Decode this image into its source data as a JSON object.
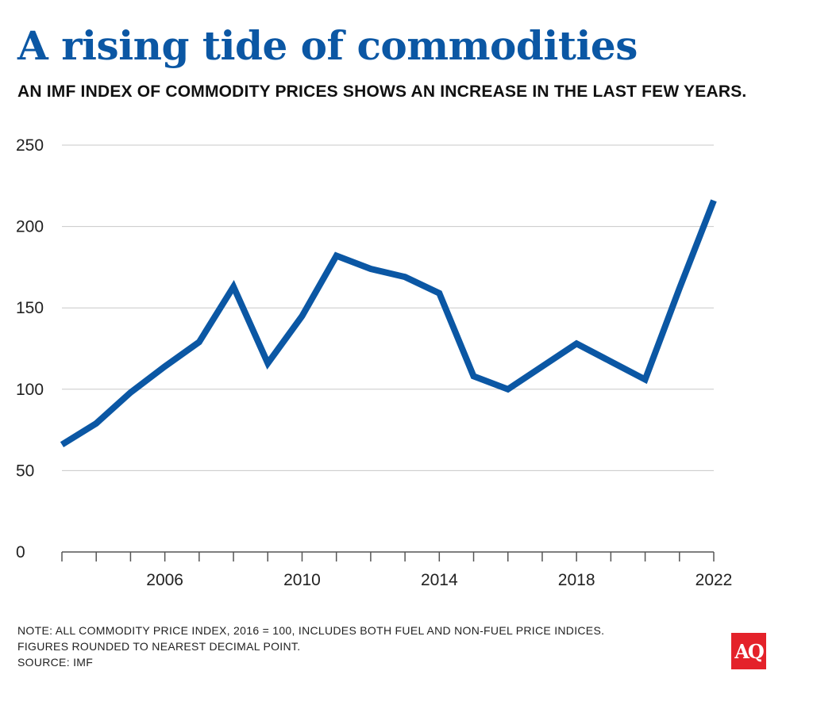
{
  "title": "A rising tide of commodities",
  "subtitle": "AN IMF INDEX OF COMMODITY PRICES SHOWS AN INCREASE IN THE LAST FEW YEARS.",
  "note_line1": "NOTE: ALL COMMODITY PRICE INDEX, 2016 = 100, INCLUDES BOTH FUEL AND NON-FUEL PRICE INDICES.",
  "note_line2": "FIGURES ROUNDED TO NEAREST DECIMAL POINT.",
  "source": "SOURCE: IMF",
  "logo_text": "AQ",
  "colors": {
    "line": "#0b57a4",
    "title": "#0b57a4",
    "logo": "#e4222a",
    "grid": "#c8c8c8"
  },
  "chart_data": {
    "type": "line",
    "title": "A rising tide of commodities",
    "subtitle": "AN IMF INDEX OF COMMODITY PRICES SHOWS AN INCREASE IN THE LAST FEW YEARS.",
    "xlabel": "",
    "ylabel": "",
    "x": [
      2003,
      2004,
      2005,
      2006,
      2007,
      2008,
      2009,
      2010,
      2011,
      2012,
      2013,
      2014,
      2015,
      2016,
      2017,
      2018,
      2019,
      2020,
      2021,
      2022
    ],
    "values": [
      66,
      79,
      98,
      114,
      129,
      163,
      116,
      145,
      182,
      174,
      169,
      159,
      108,
      100,
      114,
      128,
      117,
      106,
      162,
      216
    ],
    "xlim": [
      2003,
      2022
    ],
    "ylim": [
      0,
      250
    ],
    "yticks": [
      0,
      50,
      100,
      150,
      200,
      250
    ],
    "xtick_labels": [
      2006,
      2010,
      2014,
      2018,
      2022
    ],
    "grid": "horizontal"
  }
}
